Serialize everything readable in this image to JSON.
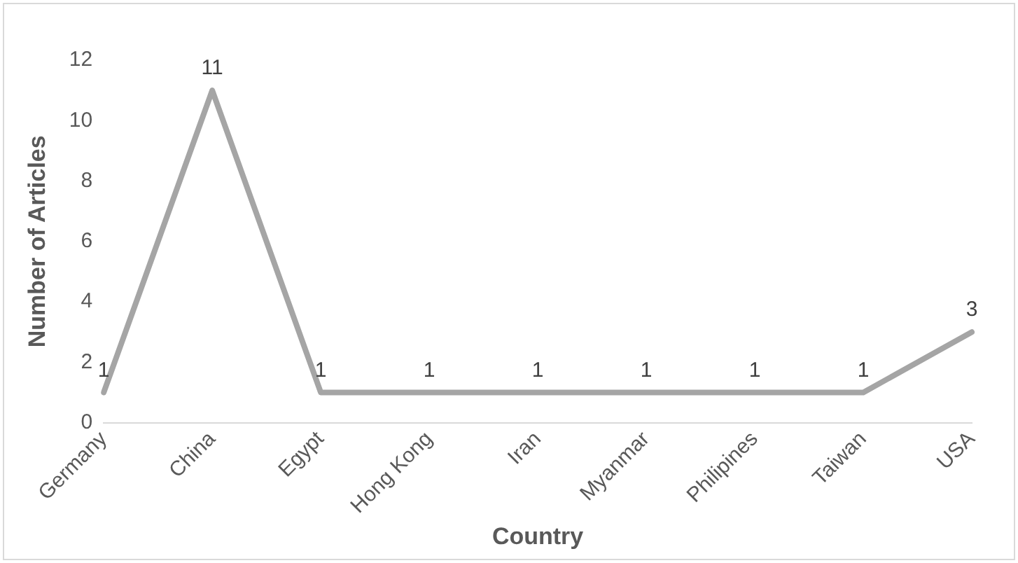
{
  "chart_data": {
    "type": "line",
    "xlabel": "Country",
    "ylabel": "Number of Articles",
    "categories": [
      "Germany",
      "China",
      "Egypt",
      "Hong Kong",
      "Iran",
      "Myanmar",
      "Philipines",
      "Taiwan",
      "USA"
    ],
    "series": [
      {
        "color": "#a5a5a5",
        "values": [
          1,
          11,
          1,
          1,
          1,
          1,
          1,
          1,
          3
        ]
      }
    ],
    "ylim": [
      0,
      12
    ],
    "yticks": [
      0,
      2,
      4,
      6,
      8,
      10,
      12
    ],
    "grid": false,
    "legend": false,
    "data_labels": true,
    "marker": "none",
    "line_style": "solid"
  }
}
